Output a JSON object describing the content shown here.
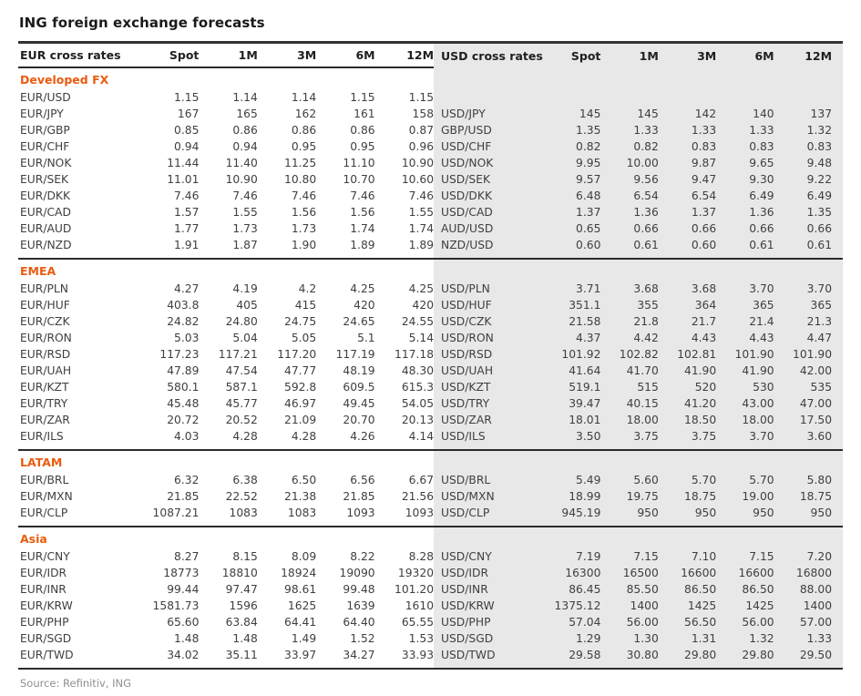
{
  "title": "ING foreign exchange forecasts",
  "source": "Source: Refinitiv, ING",
  "colors": {
    "section_header_orange": "#EA5B0F",
    "usd_panel_gray": "#E8E8E8",
    "rule_line": "#2b2b2b",
    "body_text": "#3f3f3f"
  },
  "left_table": {
    "header": {
      "label": "EUR cross rates",
      "cols": [
        "Spot",
        "1M",
        "3M",
        "6M",
        "12M"
      ]
    }
  },
  "right_table": {
    "header": {
      "label": "USD cross rates",
      "cols": [
        "Spot",
        "1M",
        "3M",
        "6M",
        "12M"
      ]
    }
  },
  "sections": [
    {
      "name": "Developed FX",
      "rows": [
        {
          "left": {
            "pair": "EUR/USD",
            "values": [
              "1.15",
              "1.14",
              "1.14",
              "1.15",
              "1.15"
            ]
          },
          "right": null
        },
        {
          "left": {
            "pair": "EUR/JPY",
            "values": [
              "167",
              "165",
              "162",
              "161",
              "158"
            ]
          },
          "right": {
            "pair": "USD/JPY",
            "values": [
              "145",
              "145",
              "142",
              "140",
              "137"
            ]
          }
        },
        {
          "left": {
            "pair": "EUR/GBP",
            "values": [
              "0.85",
              "0.86",
              "0.86",
              "0.86",
              "0.87"
            ]
          },
          "right": {
            "pair": "GBP/USD",
            "values": [
              "1.35",
              "1.33",
              "1.33",
              "1.33",
              "1.32"
            ]
          }
        },
        {
          "left": {
            "pair": "EUR/CHF",
            "values": [
              "0.94",
              "0.94",
              "0.95",
              "0.95",
              "0.96"
            ]
          },
          "right": {
            "pair": "USD/CHF",
            "values": [
              "0.82",
              "0.82",
              "0.83",
              "0.83",
              "0.83"
            ]
          }
        },
        {
          "left": {
            "pair": "EUR/NOK",
            "values": [
              "11.44",
              "11.40",
              "11.25",
              "11.10",
              "10.90"
            ]
          },
          "right": {
            "pair": "USD/NOK",
            "values": [
              "9.95",
              "10.00",
              "9.87",
              "9.65",
              "9.48"
            ]
          }
        },
        {
          "left": {
            "pair": "EUR/SEK",
            "values": [
              "11.01",
              "10.90",
              "10.80",
              "10.70",
              "10.60"
            ]
          },
          "right": {
            "pair": "USD/SEK",
            "values": [
              "9.57",
              "9.56",
              "9.47",
              "9.30",
              "9.22"
            ]
          }
        },
        {
          "left": {
            "pair": "EUR/DKK",
            "values": [
              "7.46",
              "7.46",
              "7.46",
              "7.46",
              "7.46"
            ]
          },
          "right": {
            "pair": "USD/DKK",
            "values": [
              "6.48",
              "6.54",
              "6.54",
              "6.49",
              "6.49"
            ]
          }
        },
        {
          "left": {
            "pair": "EUR/CAD",
            "values": [
              "1.57",
              "1.55",
              "1.56",
              "1.56",
              "1.55"
            ]
          },
          "right": {
            "pair": "USD/CAD",
            "values": [
              "1.37",
              "1.36",
              "1.37",
              "1.36",
              "1.35"
            ]
          }
        },
        {
          "left": {
            "pair": "EUR/AUD",
            "values": [
              "1.77",
              "1.73",
              "1.73",
              "1.74",
              "1.74"
            ]
          },
          "right": {
            "pair": "AUD/USD",
            "values": [
              "0.65",
              "0.66",
              "0.66",
              "0.66",
              "0.66"
            ]
          }
        },
        {
          "left": {
            "pair": "EUR/NZD",
            "values": [
              "1.91",
              "1.87",
              "1.90",
              "1.89",
              "1.89"
            ]
          },
          "right": {
            "pair": "NZD/USD",
            "values": [
              "0.60",
              "0.61",
              "0.60",
              "0.61",
              "0.61"
            ]
          }
        }
      ]
    },
    {
      "name": "EMEA",
      "rows": [
        {
          "left": {
            "pair": "EUR/PLN",
            "values": [
              "4.27",
              "4.19",
              "4.2",
              "4.25",
              "4.25"
            ]
          },
          "right": {
            "pair": "USD/PLN",
            "values": [
              "3.71",
              "3.68",
              "3.68",
              "3.70",
              "3.70"
            ]
          }
        },
        {
          "left": {
            "pair": "EUR/HUF",
            "values": [
              "403.8",
              "405",
              "415",
              "420",
              "420"
            ]
          },
          "right": {
            "pair": "USD/HUF",
            "values": [
              "351.1",
              "355",
              "364",
              "365",
              "365"
            ]
          }
        },
        {
          "left": {
            "pair": "EUR/CZK",
            "values": [
              "24.82",
              "24.80",
              "24.75",
              "24.65",
              "24.55"
            ]
          },
          "right": {
            "pair": "USD/CZK",
            "values": [
              "21.58",
              "21.8",
              "21.7",
              "21.4",
              "21.3"
            ]
          }
        },
        {
          "left": {
            "pair": "EUR/RON",
            "values": [
              "5.03",
              "5.04",
              "5.05",
              "5.1",
              "5.14"
            ]
          },
          "right": {
            "pair": "USD/RON",
            "values": [
              "4.37",
              "4.42",
              "4.43",
              "4.43",
              "4.47"
            ]
          }
        },
        {
          "left": {
            "pair": "EUR/RSD",
            "values": [
              "117.23",
              "117.21",
              "117.20",
              "117.19",
              "117.18"
            ]
          },
          "right": {
            "pair": "USD/RSD",
            "values": [
              "101.92",
              "102.82",
              "102.81",
              "101.90",
              "101.90"
            ]
          }
        },
        {
          "left": {
            "pair": "EUR/UAH",
            "values": [
              "47.89",
              "47.54",
              "47.77",
              "48.19",
              "48.30"
            ]
          },
          "right": {
            "pair": "USD/UAH",
            "values": [
              "41.64",
              "41.70",
              "41.90",
              "41.90",
              "42.00"
            ]
          }
        },
        {
          "left": {
            "pair": "EUR/KZT",
            "values": [
              "580.1",
              "587.1",
              "592.8",
              "609.5",
              "615.3"
            ]
          },
          "right": {
            "pair": "USD/KZT",
            "values": [
              "519.1",
              "515",
              "520",
              "530",
              "535"
            ]
          }
        },
        {
          "left": {
            "pair": "EUR/TRY",
            "values": [
              "45.48",
              "45.77",
              "46.97",
              "49.45",
              "54.05"
            ]
          },
          "right": {
            "pair": "USD/TRY",
            "values": [
              "39.47",
              "40.15",
              "41.20",
              "43.00",
              "47.00"
            ]
          }
        },
        {
          "left": {
            "pair": "EUR/ZAR",
            "values": [
              "20.72",
              "20.52",
              "21.09",
              "20.70",
              "20.13"
            ]
          },
          "right": {
            "pair": "USD/ZAR",
            "values": [
              "18.01",
              "18.00",
              "18.50",
              "18.00",
              "17.50"
            ]
          }
        },
        {
          "left": {
            "pair": "EUR/ILS",
            "values": [
              "4.03",
              "4.28",
              "4.28",
              "4.26",
              "4.14"
            ]
          },
          "right": {
            "pair": "USD/ILS",
            "values": [
              "3.50",
              "3.75",
              "3.75",
              "3.70",
              "3.60"
            ]
          }
        }
      ]
    },
    {
      "name": "LATAM",
      "rows": [
        {
          "left": {
            "pair": "EUR/BRL",
            "values": [
              "6.32",
              "6.38",
              "6.50",
              "6.56",
              "6.67"
            ]
          },
          "right": {
            "pair": "USD/BRL",
            "values": [
              "5.49",
              "5.60",
              "5.70",
              "5.70",
              "5.80"
            ]
          }
        },
        {
          "left": {
            "pair": "EUR/MXN",
            "values": [
              "21.85",
              "22.52",
              "21.38",
              "21.85",
              "21.56"
            ]
          },
          "right": {
            "pair": "USD/MXN",
            "values": [
              "18.99",
              "19.75",
              "18.75",
              "19.00",
              "18.75"
            ]
          }
        },
        {
          "left": {
            "pair": "EUR/CLP",
            "values": [
              "1087.21",
              "1083",
              "1083",
              "1093",
              "1093"
            ]
          },
          "right": {
            "pair": "USD/CLP",
            "values": [
              "945.19",
              "950",
              "950",
              "950",
              "950"
            ]
          }
        }
      ]
    },
    {
      "name": "Asia",
      "rows": [
        {
          "left": {
            "pair": "EUR/CNY",
            "values": [
              "8.27",
              "8.15",
              "8.09",
              "8.22",
              "8.28"
            ]
          },
          "right": {
            "pair": "USD/CNY",
            "values": [
              "7.19",
              "7.15",
              "7.10",
              "7.15",
              "7.20"
            ]
          }
        },
        {
          "left": {
            "pair": "EUR/IDR",
            "values": [
              "18773",
              "18810",
              "18924",
              "19090",
              "19320"
            ]
          },
          "right": {
            "pair": "USD/IDR",
            "values": [
              "16300",
              "16500",
              "16600",
              "16600",
              "16800"
            ]
          }
        },
        {
          "left": {
            "pair": "EUR/INR",
            "values": [
              "99.44",
              "97.47",
              "98.61",
              "99.48",
              "101.20"
            ]
          },
          "right": {
            "pair": "USD/INR",
            "values": [
              "86.45",
              "85.50",
              "86.50",
              "86.50",
              "88.00"
            ]
          }
        },
        {
          "left": {
            "pair": "EUR/KRW",
            "values": [
              "1581.73",
              "1596",
              "1625",
              "1639",
              "1610"
            ]
          },
          "right": {
            "pair": "USD/KRW",
            "values": [
              "1375.12",
              "1400",
              "1425",
              "1425",
              "1400"
            ]
          }
        },
        {
          "left": {
            "pair": "EUR/PHP",
            "values": [
              "65.60",
              "63.84",
              "64.41",
              "64.40",
              "65.55"
            ]
          },
          "right": {
            "pair": "USD/PHP",
            "values": [
              "57.04",
              "56.00",
              "56.50",
              "56.00",
              "57.00"
            ]
          }
        },
        {
          "left": {
            "pair": "EUR/SGD",
            "values": [
              "1.48",
              "1.48",
              "1.49",
              "1.52",
              "1.53"
            ]
          },
          "right": {
            "pair": "USD/SGD",
            "values": [
              "1.29",
              "1.30",
              "1.31",
              "1.32",
              "1.33"
            ]
          }
        },
        {
          "left": {
            "pair": "EUR/TWD",
            "values": [
              "34.02",
              "35.11",
              "33.97",
              "34.27",
              "33.93"
            ]
          },
          "right": {
            "pair": "USD/TWD",
            "values": [
              "29.58",
              "30.80",
              "29.80",
              "29.80",
              "29.50"
            ]
          }
        }
      ]
    }
  ]
}
